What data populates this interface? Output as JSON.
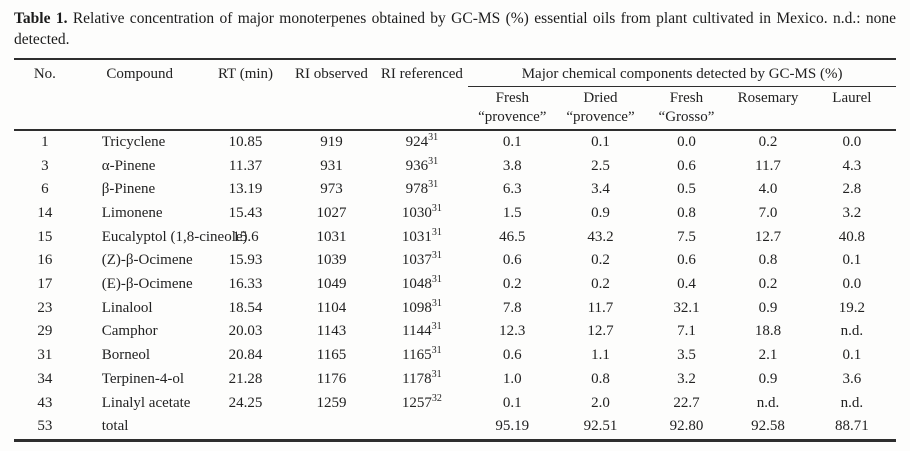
{
  "caption": {
    "label": "Table 1.",
    "text": "Relative concentration of major monoterpenes obtained by GC-MS (%) essential oils from plant cultivated in Mexico. n.d.: none detected."
  },
  "table": {
    "columns": [
      "No.",
      "Compound",
      "RT (min)",
      "RI observed",
      "RI referenced"
    ],
    "group_header": "Major chemical components detected by GC-MS (%)",
    "sample_columns": [
      {
        "line1": "Fresh",
        "line2": "“provence”"
      },
      {
        "line1": "Dried",
        "line2": "“provence”"
      },
      {
        "line1": "Fresh",
        "line2": "“Grosso”"
      },
      {
        "line1": "Rosemary",
        "line2": ""
      },
      {
        "line1": "Laurel",
        "line2": ""
      }
    ],
    "rows": [
      {
        "no": "1",
        "compound": "Tricyclene",
        "rt": "10.85",
        "ri_observed": "919",
        "ri_referenced": "924",
        "ri_ref_sup": "31",
        "values": [
          "0.1",
          "0.1",
          "0.0",
          "0.2",
          "0.0"
        ]
      },
      {
        "no": "3",
        "compound": "α-Pinene",
        "rt": "11.37",
        "ri_observed": "931",
        "ri_referenced": "936",
        "ri_ref_sup": "31",
        "values": [
          "3.8",
          "2.5",
          "0.6",
          "11.7",
          "4.3"
        ]
      },
      {
        "no": "6",
        "compound": "β-Pinene",
        "rt": "13.19",
        "ri_observed": "973",
        "ri_referenced": "978",
        "ri_ref_sup": "31",
        "values": [
          "6.3",
          "3.4",
          "0.5",
          "4.0",
          "2.8"
        ]
      },
      {
        "no": "14",
        "compound": "Limonene",
        "rt": "15.43",
        "ri_observed": "1027",
        "ri_referenced": "1030",
        "ri_ref_sup": "31",
        "values": [
          "1.5",
          "0.9",
          "0.8",
          "7.0",
          "3.2"
        ]
      },
      {
        "no": "15",
        "compound": "Eucalyptol (1,8-cineole)",
        "rt": "15.6",
        "ri_observed": "1031",
        "ri_referenced": "1031",
        "ri_ref_sup": "31",
        "values": [
          "46.5",
          "43.2",
          "7.5",
          "12.7",
          "40.8"
        ]
      },
      {
        "no": "16",
        "compound": "(Z)-β-Ocimene",
        "rt": "15.93",
        "ri_observed": "1039",
        "ri_referenced": "1037",
        "ri_ref_sup": "31",
        "values": [
          "0.6",
          "0.2",
          "0.6",
          "0.8",
          "0.1"
        ]
      },
      {
        "no": "17",
        "compound": "(E)-β-Ocimene",
        "rt": "16.33",
        "ri_observed": "1049",
        "ri_referenced": "1048",
        "ri_ref_sup": "31",
        "values": [
          "0.2",
          "0.2",
          "0.4",
          "0.2",
          "0.0"
        ]
      },
      {
        "no": "23",
        "compound": "Linalool",
        "rt": "18.54",
        "ri_observed": "1104",
        "ri_referenced": "1098",
        "ri_ref_sup": "31",
        "values": [
          "7.8",
          "11.7",
          "32.1",
          "0.9",
          "19.2"
        ]
      },
      {
        "no": "29",
        "compound": "Camphor",
        "rt": "20.03",
        "ri_observed": "1143",
        "ri_referenced": "1144",
        "ri_ref_sup": "31",
        "values": [
          "12.3",
          "12.7",
          "7.1",
          "18.8",
          "n.d."
        ]
      },
      {
        "no": "31",
        "compound": "Borneol",
        "rt": "20.84",
        "ri_observed": "1165",
        "ri_referenced": "1165",
        "ri_ref_sup": "31",
        "values": [
          "0.6",
          "1.1",
          "3.5",
          "2.1",
          "0.1"
        ]
      },
      {
        "no": "34",
        "compound": "Terpinen-4-ol",
        "rt": "21.28",
        "ri_observed": "1176",
        "ri_referenced": "1178",
        "ri_ref_sup": "31",
        "values": [
          "1.0",
          "0.8",
          "3.2",
          "0.9",
          "3.6"
        ]
      },
      {
        "no": "43",
        "compound": "Linalyl acetate",
        "rt": "24.25",
        "ri_observed": "1259",
        "ri_referenced": "1257",
        "ri_ref_sup": "32",
        "values": [
          "0.1",
          "2.0",
          "22.7",
          "n.d.",
          "n.d."
        ]
      },
      {
        "no": "53",
        "compound": "total",
        "rt": "",
        "ri_observed": "",
        "ri_referenced": "",
        "ri_ref_sup": "",
        "values": [
          "95.19",
          "92.51",
          "92.80",
          "92.58",
          "88.71"
        ]
      }
    ]
  }
}
